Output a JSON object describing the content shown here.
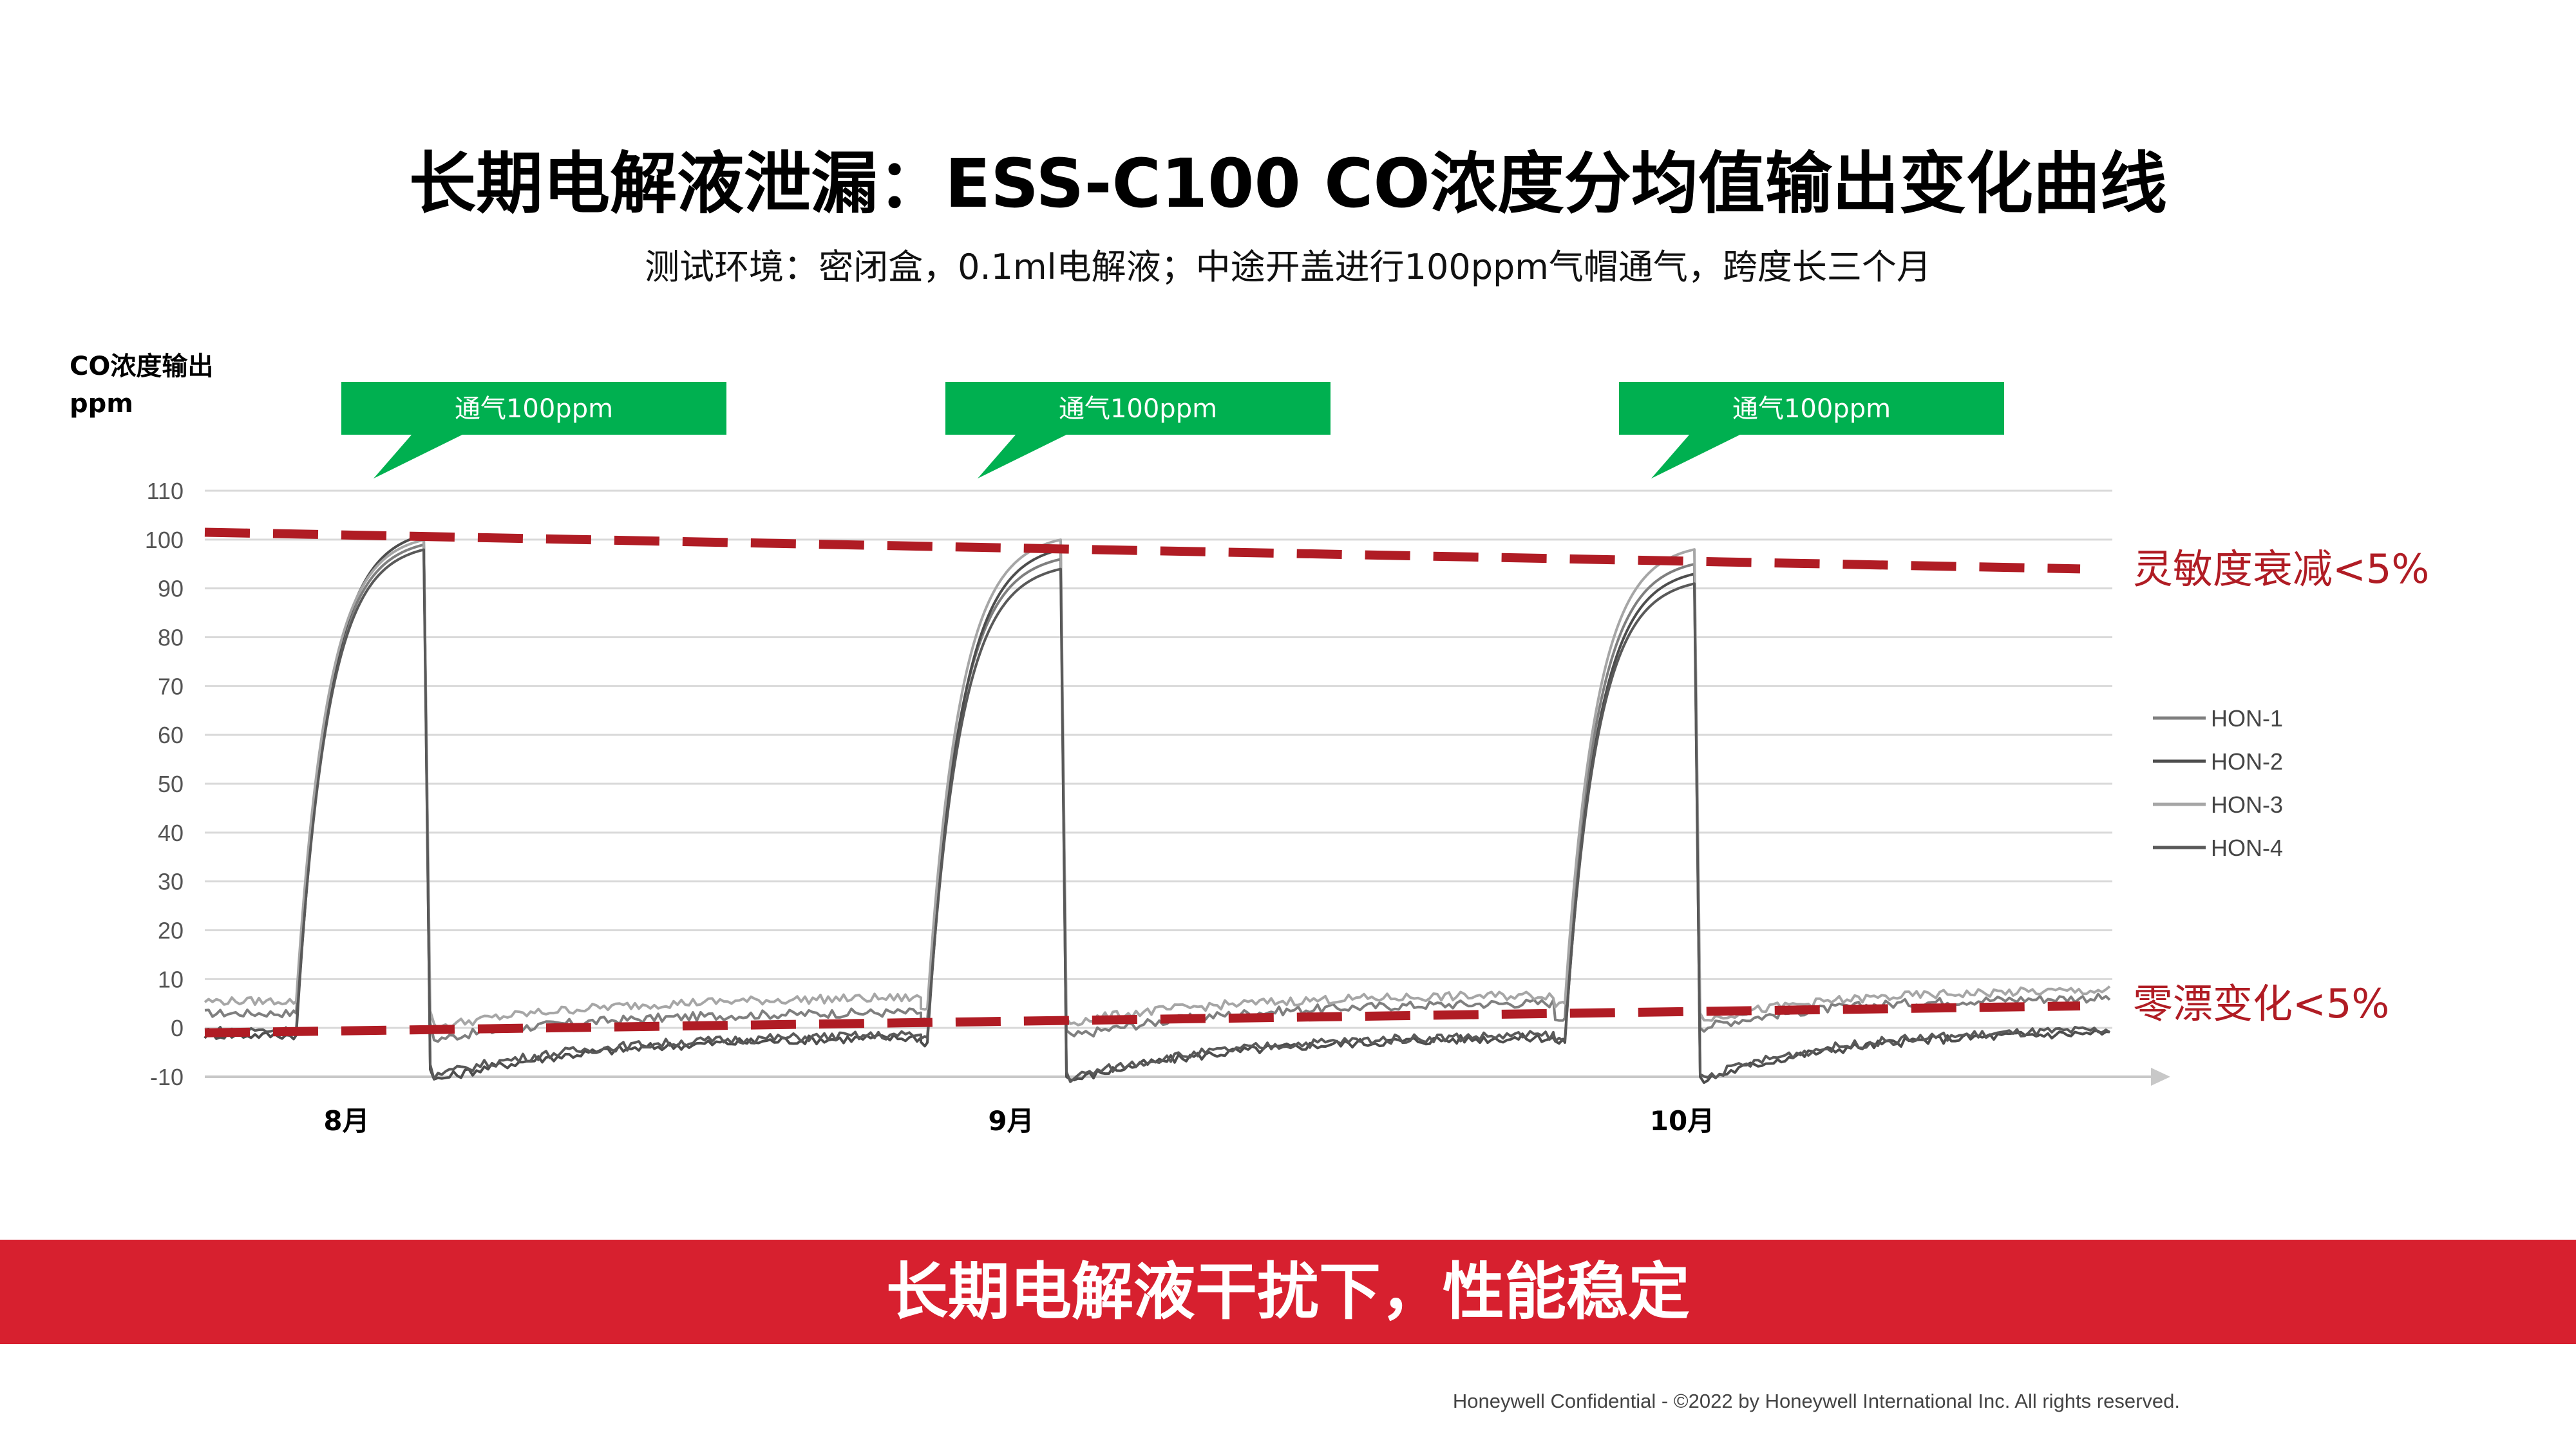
{
  "header": {
    "title": "长期电解液泄漏：ESS-C100 CO浓度分均值输出变化曲线",
    "subtitle": "测试环境：密闭盒，0.1ml电解液；中途开盖进行100ppm气帽通气，跨度长三个月"
  },
  "chart_data": {
    "type": "line",
    "ylabel_lines": [
      "CO浓度输出",
      "ppm"
    ],
    "ylim": [
      -10,
      110
    ],
    "yticks": [
      -10,
      0,
      10,
      20,
      30,
      40,
      50,
      60,
      70,
      80,
      90,
      100,
      110
    ],
    "grid": true,
    "legend_position": "right",
    "month_labels": [
      "8月",
      "9月",
      "10月"
    ],
    "callouts": [
      {
        "label": "通气100ppm"
      },
      {
        "label": "通气100ppm"
      },
      {
        "label": "通气100ppm"
      }
    ],
    "series": [
      {
        "name": "HON-1",
        "color": "#7f7f7f",
        "baseline": [
          1.5,
          2,
          4
        ],
        "peaks": [
          99,
          96,
          95
        ]
      },
      {
        "name": "HON-2",
        "color": "#4d4d4d",
        "baseline": [
          -3,
          -3,
          -3
        ],
        "peaks": [
          101,
          98,
          93
        ]
      },
      {
        "name": "HON-3",
        "color": "#a6a6a6",
        "baseline": [
          4,
          5,
          5.5
        ],
        "peaks": [
          100,
          100,
          98
        ]
      },
      {
        "name": "HON-4",
        "color": "#595959",
        "baseline": [
          -2,
          -2.5,
          -2.5
        ],
        "peaks": [
          98,
          94,
          91
        ]
      }
    ],
    "annotations": [
      {
        "label": "灵敏度衰减<5%",
        "color": "#b01c24",
        "trend_from": 101.5,
        "trend_to": 94
      },
      {
        "label": "零漂变化<5%",
        "color": "#b01c24",
        "trend_from": -1,
        "trend_to": 4.5
      }
    ]
  },
  "banner": {
    "text": "长期电解液干扰下，性能稳定"
  },
  "footer": {
    "text": "Honeywell Confidential - ©2022 by Honeywell International Inc. All rights reserved."
  }
}
